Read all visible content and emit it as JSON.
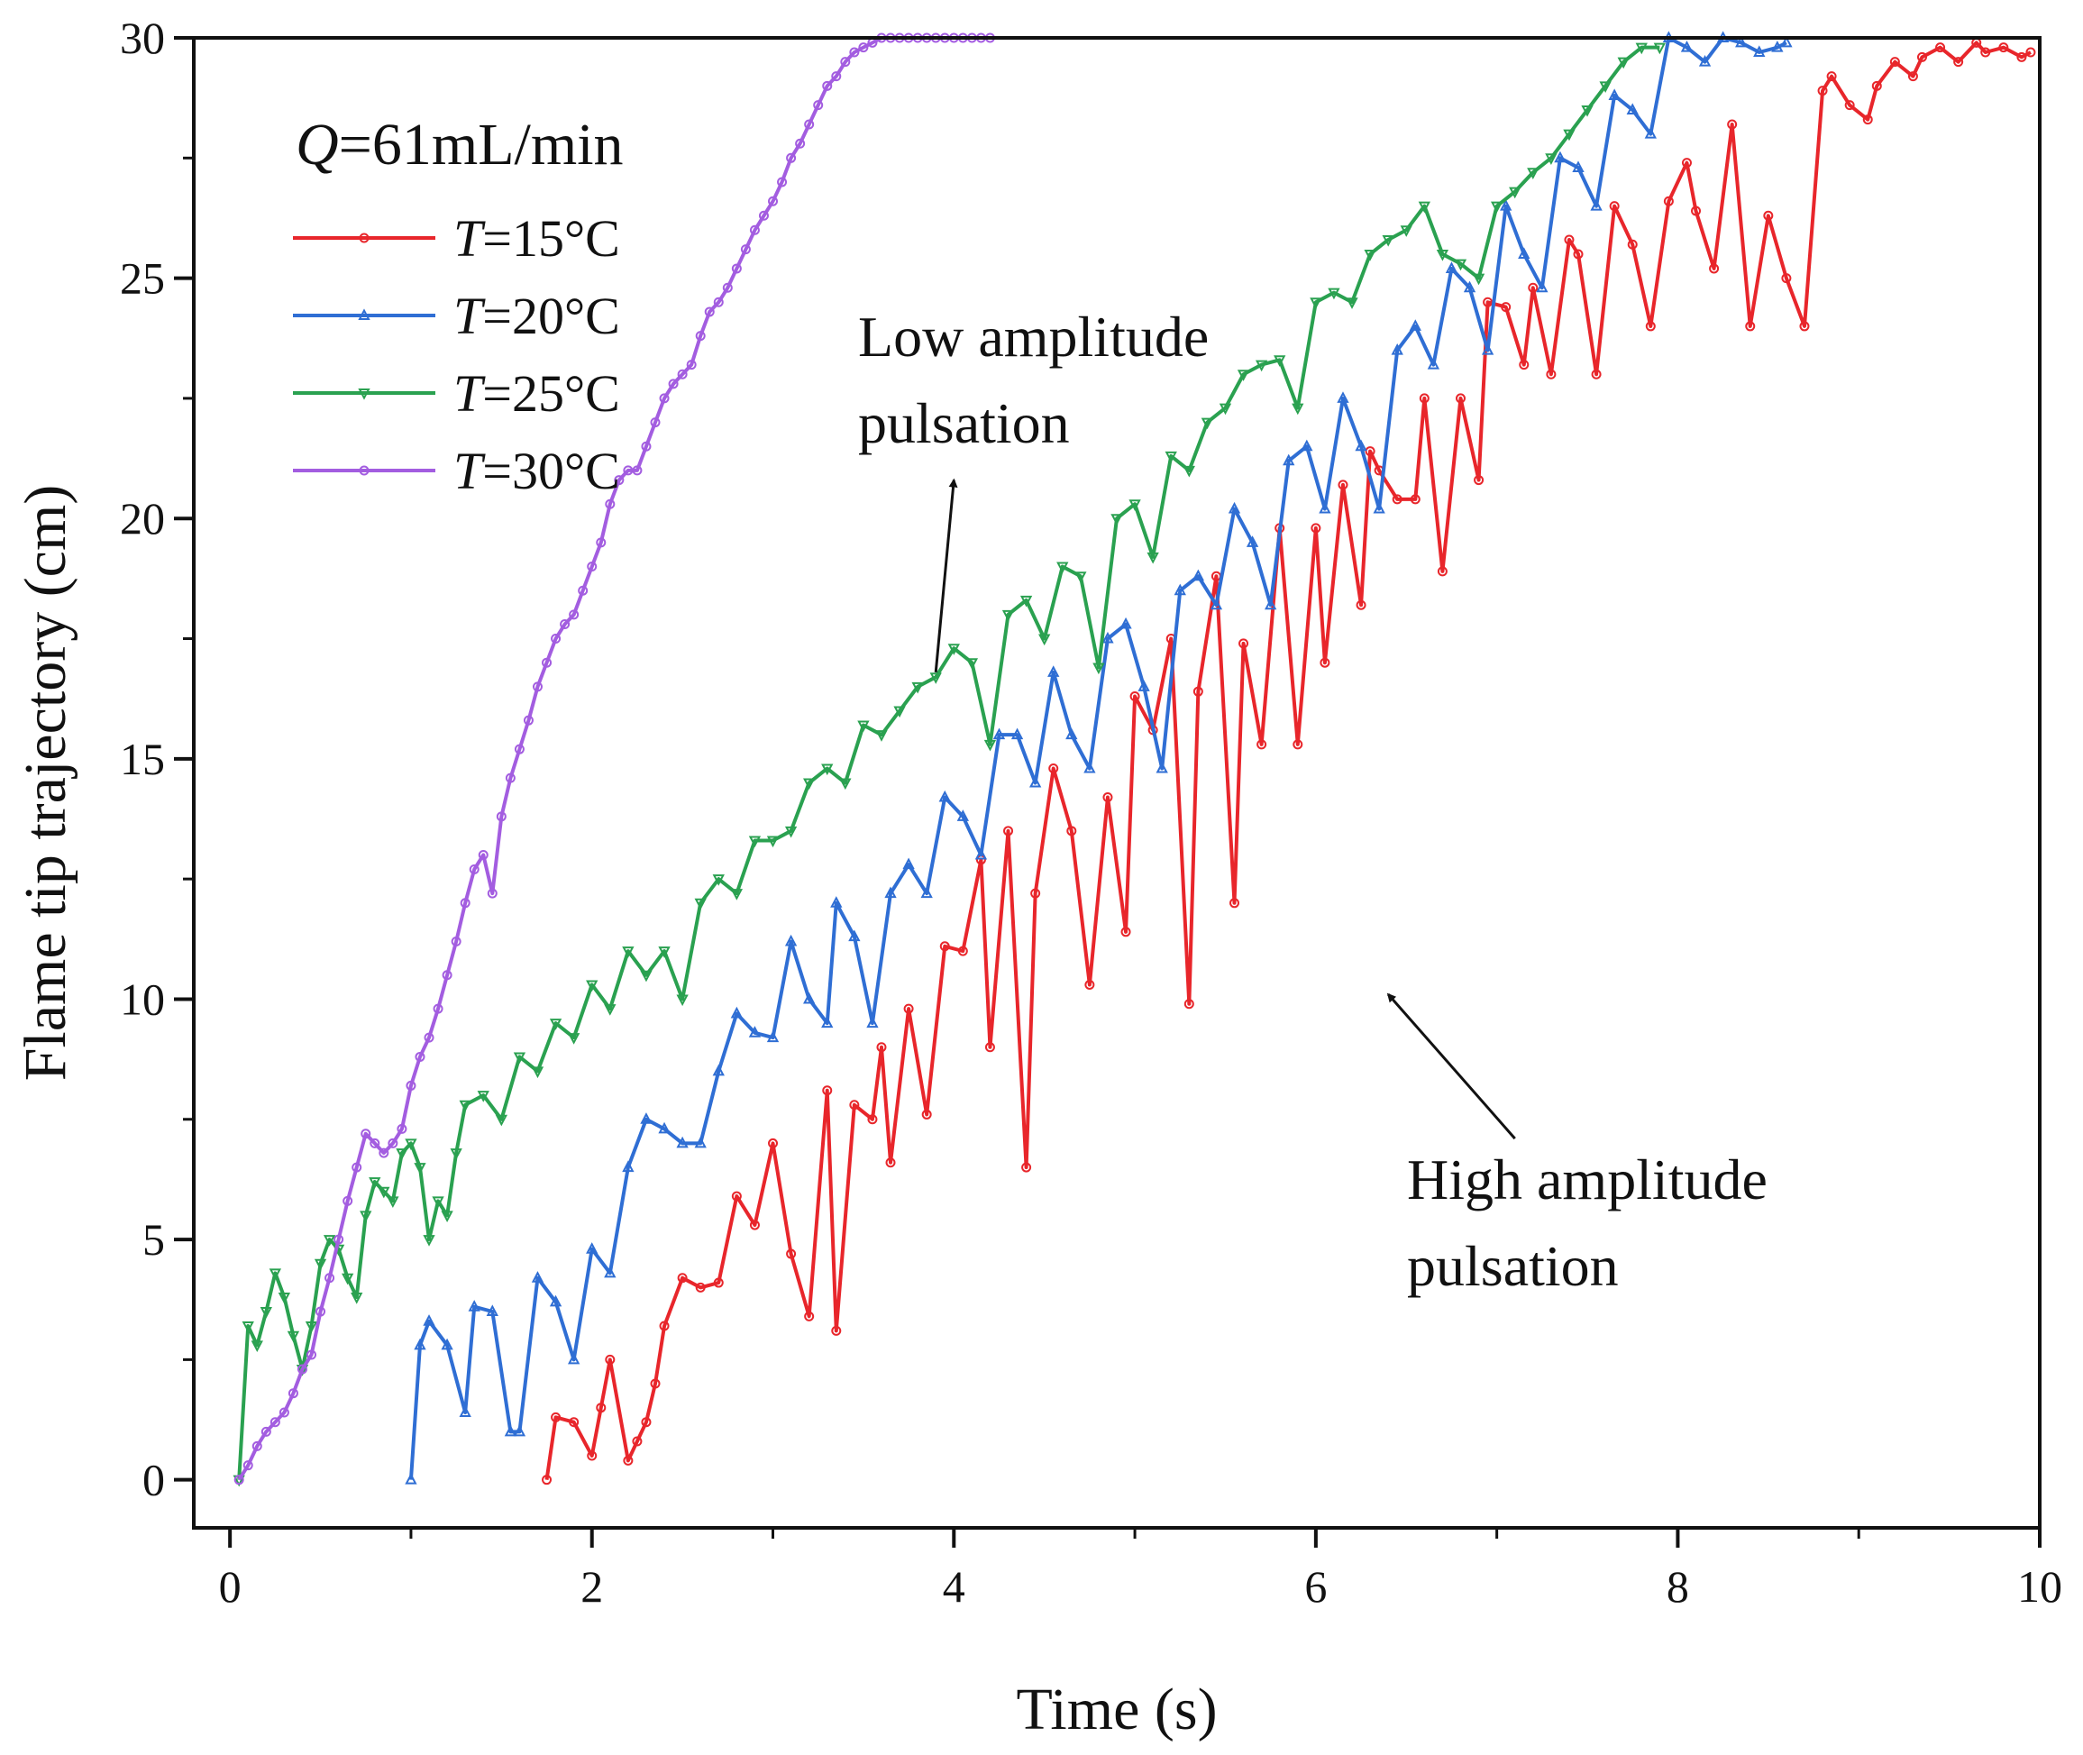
{
  "chart_data": {
    "type": "line",
    "title": "",
    "xlabel": "Time (s)",
    "ylabel": "Flame tip trajectory (cm)",
    "xlim": [
      -0.2,
      10
    ],
    "ylim": [
      -1,
      30
    ],
    "xticks": [
      0,
      2,
      4,
      6,
      8,
      10
    ],
    "yticks": [
      0,
      5,
      10,
      15,
      20,
      25,
      30
    ],
    "grid": false,
    "legend_position": "top-left",
    "legend_title": {
      "var": "Q",
      "rest": "=61mL/min"
    },
    "annotations": [
      {
        "lines": [
          "Low amplitude",
          "pulsation"
        ],
        "arrow_from": [
          3.9,
          16.8
        ],
        "arrow_to": [
          4.0,
          20.8
        ]
      },
      {
        "lines": [
          "High amplitude",
          "pulsation"
        ],
        "arrow_from": [
          7.1,
          7.1
        ],
        "arrow_to": [
          6.4,
          10.1
        ]
      }
    ],
    "series": [
      {
        "name": "T=15°C",
        "var": "T",
        "rest": "=15°C",
        "color": "#e8262b",
        "marker": "circle",
        "x": [
          1.75,
          1.8,
          1.9,
          2.0,
          2.05,
          2.1,
          2.2,
          2.25,
          2.3,
          2.35,
          2.4,
          2.5,
          2.6,
          2.7,
          2.8,
          2.9,
          3.0,
          3.1,
          3.2,
          3.3,
          3.35,
          3.45,
          3.55,
          3.6,
          3.65,
          3.75,
          3.85,
          3.95,
          4.05,
          4.15,
          4.2,
          4.3,
          4.4,
          4.45,
          4.55,
          4.65,
          4.75,
          4.85,
          4.95,
          5.0,
          5.1,
          5.2,
          5.3,
          5.35,
          5.45,
          5.55,
          5.6,
          5.7,
          5.8,
          5.9,
          6.0,
          6.05,
          6.15,
          6.25,
          6.3,
          6.35,
          6.45,
          6.55,
          6.6,
          6.7,
          6.8,
          6.9,
          6.95,
          7.05,
          7.15,
          7.2,
          7.3,
          7.4,
          7.45,
          7.55,
          7.65,
          7.75,
          7.85,
          7.95,
          8.05,
          8.1,
          8.2,
          8.3,
          8.4,
          8.5,
          8.6,
          8.7,
          8.8,
          8.85,
          8.95,
          9.05,
          9.1,
          9.2,
          9.3,
          9.35,
          9.45,
          9.55,
          9.65,
          9.7,
          9.8,
          9.9,
          9.95
        ],
        "y": [
          0.0,
          1.3,
          1.2,
          0.5,
          1.5,
          2.5,
          0.4,
          0.8,
          1.2,
          2.0,
          3.2,
          4.2,
          4.0,
          4.1,
          5.9,
          5.3,
          7.0,
          4.7,
          3.4,
          8.1,
          3.1,
          7.8,
          7.5,
          9.0,
          6.6,
          9.8,
          7.6,
          11.1,
          11.0,
          12.9,
          9.0,
          13.5,
          6.5,
          12.2,
          14.8,
          13.5,
          10.3,
          14.2,
          11.4,
          16.3,
          15.6,
          17.5,
          9.9,
          16.4,
          18.8,
          12.0,
          17.4,
          15.3,
          19.8,
          15.3,
          19.8,
          17.0,
          20.7,
          18.2,
          21.4,
          21.0,
          20.4,
          20.4,
          22.5,
          18.9,
          22.5,
          20.8,
          24.5,
          24.4,
          23.2,
          24.8,
          23.0,
          25.8,
          25.5,
          23.0,
          26.5,
          25.7,
          24.0,
          26.6,
          27.4,
          26.4,
          25.2,
          28.2,
          24.0,
          26.3,
          25.0,
          24.0,
          28.9,
          29.2,
          28.6,
          28.3,
          29.0,
          29.5,
          29.2,
          29.6,
          29.8,
          29.5,
          29.9,
          29.7,
          29.8,
          29.6,
          29.7
        ]
      },
      {
        "name": "T=20°C",
        "var": "T",
        "rest": "=20°C",
        "color": "#2f6ed4",
        "marker": "triangle",
        "x": [
          1.0,
          1.05,
          1.1,
          1.2,
          1.3,
          1.35,
          1.45,
          1.55,
          1.6,
          1.7,
          1.8,
          1.9,
          2.0,
          2.1,
          2.2,
          2.3,
          2.4,
          2.5,
          2.6,
          2.7,
          2.8,
          2.9,
          3.0,
          3.1,
          3.2,
          3.3,
          3.35,
          3.45,
          3.55,
          3.65,
          3.75,
          3.85,
          3.95,
          4.05,
          4.15,
          4.25,
          4.35,
          4.45,
          4.55,
          4.65,
          4.75,
          4.85,
          4.95,
          5.05,
          5.15,
          5.25,
          5.35,
          5.45,
          5.55,
          5.65,
          5.75,
          5.85,
          5.95,
          6.05,
          6.15,
          6.25,
          6.35,
          6.45,
          6.55,
          6.65,
          6.75,
          6.85,
          6.95,
          7.05,
          7.15,
          7.25,
          7.35,
          7.45,
          7.55,
          7.65,
          7.75,
          7.85,
          7.95,
          8.05,
          8.15,
          8.25,
          8.35,
          8.45,
          8.55,
          8.6
        ],
        "y": [
          0.0,
          2.8,
          3.3,
          2.8,
          1.4,
          3.6,
          3.5,
          1.0,
          1.0,
          4.2,
          3.7,
          2.5,
          4.8,
          4.3,
          6.5,
          7.5,
          7.3,
          7.0,
          7.0,
          8.5,
          9.7,
          9.3,
          9.2,
          11.2,
          10.0,
          9.5,
          12.0,
          11.3,
          9.5,
          12.2,
          12.8,
          12.2,
          14.2,
          13.8,
          13.0,
          15.5,
          15.5,
          14.5,
          16.8,
          15.5,
          14.8,
          17.5,
          17.8,
          16.5,
          14.8,
          18.5,
          18.8,
          18.2,
          20.2,
          19.5,
          18.2,
          21.2,
          21.5,
          20.2,
          22.5,
          21.5,
          20.2,
          23.5,
          24.0,
          23.2,
          25.2,
          24.8,
          23.5,
          26.5,
          25.5,
          24.8,
          27.5,
          27.3,
          26.5,
          28.8,
          28.5,
          28.0,
          30.0,
          29.8,
          29.5,
          30.0,
          29.9,
          29.7,
          29.8,
          29.9
        ]
      },
      {
        "name": "T=25°C",
        "var": "T",
        "rest": "=25°C",
        "color": "#2aa150",
        "marker": "down-triangle",
        "x": [
          0.05,
          0.1,
          0.15,
          0.2,
          0.25,
          0.3,
          0.35,
          0.4,
          0.45,
          0.5,
          0.55,
          0.6,
          0.65,
          0.7,
          0.75,
          0.8,
          0.85,
          0.9,
          0.95,
          1.0,
          1.05,
          1.1,
          1.15,
          1.2,
          1.25,
          1.3,
          1.4,
          1.5,
          1.6,
          1.7,
          1.8,
          1.9,
          2.0,
          2.1,
          2.2,
          2.3,
          2.4,
          2.5,
          2.6,
          2.7,
          2.8,
          2.9,
          3.0,
          3.1,
          3.2,
          3.3,
          3.4,
          3.5,
          3.6,
          3.7,
          3.8,
          3.9,
          4.0,
          4.1,
          4.2,
          4.3,
          4.4,
          4.5,
          4.6,
          4.7,
          4.8,
          4.9,
          5.0,
          5.1,
          5.2,
          5.3,
          5.4,
          5.5,
          5.6,
          5.7,
          5.8,
          5.9,
          6.0,
          6.1,
          6.2,
          6.3,
          6.4,
          6.5,
          6.6,
          6.7,
          6.8,
          6.9,
          7.0,
          7.1,
          7.2,
          7.3,
          7.4,
          7.5,
          7.6,
          7.7,
          7.8,
          7.9
        ],
        "y": [
          0.0,
          3.2,
          2.8,
          3.5,
          4.3,
          3.8,
          3.0,
          2.3,
          3.2,
          4.5,
          5.0,
          4.8,
          4.2,
          3.8,
          5.5,
          6.2,
          6.0,
          5.8,
          6.8,
          7.0,
          6.5,
          5.0,
          5.8,
          5.5,
          6.8,
          7.8,
          8.0,
          7.5,
          8.8,
          8.5,
          9.5,
          9.2,
          10.3,
          9.8,
          11.0,
          10.5,
          11.0,
          10.0,
          12.0,
          12.5,
          12.2,
          13.3,
          13.3,
          13.5,
          14.5,
          14.8,
          14.5,
          15.7,
          15.5,
          16.0,
          16.5,
          16.7,
          17.3,
          17.0,
          15.3,
          18.0,
          18.3,
          17.5,
          19.0,
          18.8,
          16.9,
          20.0,
          20.3,
          19.2,
          21.3,
          21.0,
          22.0,
          22.3,
          23.0,
          23.2,
          23.3,
          22.3,
          24.5,
          24.7,
          24.5,
          25.5,
          25.8,
          26.0,
          26.5,
          25.5,
          25.3,
          25.0,
          26.5,
          26.8,
          27.2,
          27.5,
          28.0,
          28.5,
          29.0,
          29.5,
          29.8,
          29.8
        ]
      },
      {
        "name": "T=30°C",
        "var": "T",
        "rest": "=30°C",
        "color": "#a35de0",
        "marker": "circle",
        "x": [
          0.05,
          0.1,
          0.15,
          0.2,
          0.25,
          0.3,
          0.35,
          0.4,
          0.45,
          0.5,
          0.55,
          0.6,
          0.65,
          0.7,
          0.75,
          0.8,
          0.85,
          0.9,
          0.95,
          1.0,
          1.05,
          1.1,
          1.15,
          1.2,
          1.25,
          1.3,
          1.35,
          1.4,
          1.45,
          1.5,
          1.55,
          1.6,
          1.65,
          1.7,
          1.75,
          1.8,
          1.85,
          1.9,
          1.95,
          2.0,
          2.05,
          2.1,
          2.15,
          2.2,
          2.25,
          2.3,
          2.35,
          2.4,
          2.45,
          2.5,
          2.55,
          2.6,
          2.65,
          2.7,
          2.75,
          2.8,
          2.85,
          2.9,
          2.95,
          3.0,
          3.05,
          3.1,
          3.15,
          3.2,
          3.25,
          3.3,
          3.35,
          3.4,
          3.45,
          3.5,
          3.55,
          3.6,
          3.65,
          3.7,
          3.75,
          3.8,
          3.85,
          3.9,
          3.95,
          4.0,
          4.05,
          4.1,
          4.15,
          4.2
        ],
        "y": [
          0.0,
          0.3,
          0.7,
          1.0,
          1.2,
          1.4,
          1.8,
          2.3,
          2.6,
          3.5,
          4.2,
          5.0,
          5.8,
          6.5,
          7.2,
          7.0,
          6.8,
          7.0,
          7.3,
          8.2,
          8.8,
          9.2,
          9.8,
          10.5,
          11.2,
          12.0,
          12.7,
          13.0,
          12.2,
          13.8,
          14.6,
          15.2,
          15.8,
          16.5,
          17.0,
          17.5,
          17.8,
          18.0,
          18.5,
          19.0,
          19.5,
          20.3,
          20.8,
          21.0,
          21.0,
          21.5,
          22.0,
          22.5,
          22.8,
          23.0,
          23.2,
          23.8,
          24.3,
          24.5,
          24.8,
          25.2,
          25.6,
          26.0,
          26.3,
          26.6,
          27.0,
          27.5,
          27.8,
          28.2,
          28.6,
          29.0,
          29.2,
          29.5,
          29.7,
          29.8,
          29.9,
          30.0,
          30.0,
          30.0,
          30.0,
          30.0,
          30.0,
          30.0,
          30.0,
          30.0,
          30.0,
          30.0,
          30.0,
          30.0
        ]
      }
    ]
  }
}
